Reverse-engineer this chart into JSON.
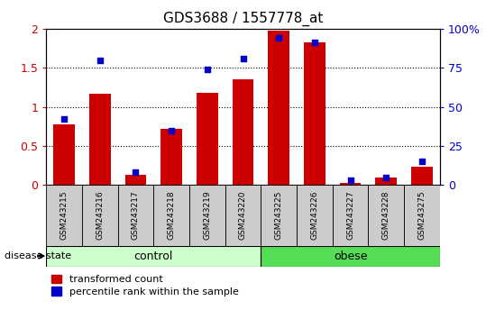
{
  "title": "GDS3688 / 1557778_at",
  "samples": [
    "GSM243215",
    "GSM243216",
    "GSM243217",
    "GSM243218",
    "GSM243219",
    "GSM243220",
    "GSM243225",
    "GSM243226",
    "GSM243227",
    "GSM243228",
    "GSM243275"
  ],
  "transformed_count": [
    0.78,
    1.17,
    0.13,
    0.72,
    1.18,
    1.35,
    1.97,
    1.82,
    0.03,
    0.1,
    0.23
  ],
  "percentile_rank_pct": [
    42,
    80,
    8,
    35,
    74,
    81,
    94,
    91,
    3,
    5,
    15
  ],
  "groups": [
    "control",
    "control",
    "control",
    "control",
    "control",
    "control",
    "obese",
    "obese",
    "obese",
    "obese",
    "obese"
  ],
  "control_color": "#ccffcc",
  "obese_color": "#55dd55",
  "sample_box_color": "#cccccc",
  "bar_color": "#cc0000",
  "dot_color": "#0000cc",
  "ylim_left": [
    0,
    2
  ],
  "ylim_right": [
    0,
    100
  ],
  "yticks_left": [
    0,
    0.5,
    1.0,
    1.5,
    2.0
  ],
  "ytick_labels_left": [
    "0",
    "0.5",
    "1",
    "1.5",
    "2"
  ],
  "yticks_right": [
    0,
    25,
    50,
    75,
    100
  ],
  "ytick_labels_right": [
    "0",
    "25",
    "50",
    "75",
    "100%"
  ],
  "bar_width": 0.6,
  "dot_size": 22,
  "group_label": "disease state",
  "legend1": "transformed count",
  "legend2": "percentile rank within the sample"
}
